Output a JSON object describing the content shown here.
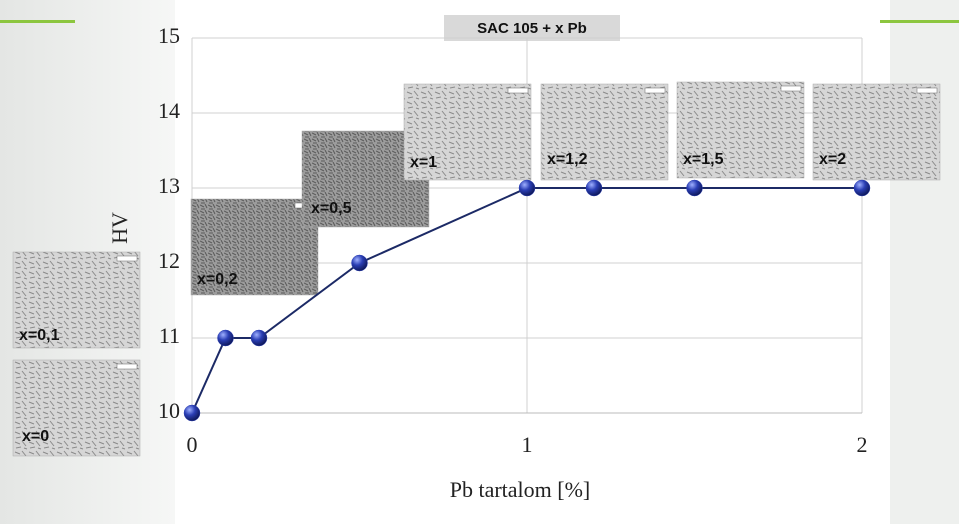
{
  "chart_data": {
    "type": "line",
    "title": "SAC 105 + x Pb",
    "x_label": "Pb tartalom [%]",
    "y_label": "HV",
    "x": [
      0,
      0.1,
      0.2,
      0.5,
      1,
      1.2,
      1.5,
      2
    ],
    "values": [
      10,
      11,
      11,
      12,
      13,
      13,
      13,
      13
    ],
    "color": "#1c2a66",
    "marker_color": "#2b3fb5",
    "xlim": [
      0,
      2
    ],
    "xticks": [
      0,
      1,
      2
    ],
    "ylim": [
      10,
      15
    ],
    "yticks": [
      10,
      11,
      12,
      13,
      14,
      15
    ],
    "grid": true,
    "annotations": [
      "x=0",
      "x=0,1",
      "x=0,2",
      "x=0,5",
      "x=1",
      "x=1,2",
      "x=1,5",
      "x=2"
    ]
  }
}
